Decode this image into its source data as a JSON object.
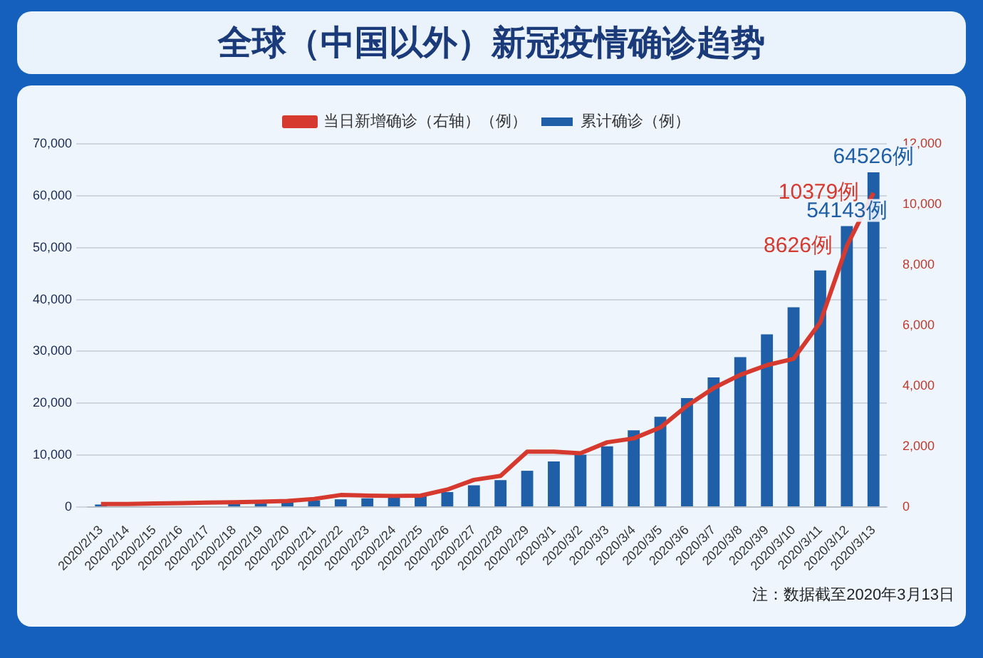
{
  "chart_data": {
    "type": "bar",
    "title": "全球（中国以外）新冠疫情确诊趋势",
    "categories": [
      "2020/2/13",
      "2020/2/14",
      "2020/2/15",
      "2020/2/16",
      "2020/2/17",
      "2020/2/18",
      "2020/2/19",
      "2020/2/20",
      "2020/2/21",
      "2020/2/22",
      "2020/2/23",
      "2020/2/24",
      "2020/2/25",
      "2020/2/26",
      "2020/2/27",
      "2020/2/28",
      "2020/2/29",
      "2020/3/1",
      "2020/3/2",
      "2020/3/3",
      "2020/3/4",
      "2020/3/5",
      "2020/3/6",
      "2020/3/7",
      "2020/3/8",
      "2020/3/9",
      "2020/3/10",
      "2020/3/11",
      "2020/3/12",
      "2020/3/13"
    ],
    "series": [
      {
        "name": "累计确诊（例）",
        "color": "#1f5fa8",
        "values": [
          500,
          null,
          null,
          null,
          null,
          900,
          1000,
          1100,
          1300,
          1500,
          1700,
          2000,
          2400,
          2900,
          4200,
          5200,
          7000,
          8800,
          10100,
          11700,
          14800,
          17400,
          21000,
          25000,
          28900,
          33300,
          38500,
          45600,
          54143,
          64526
        ],
        "value_labels": [
          null,
          null,
          null,
          null,
          null,
          null,
          null,
          null,
          null,
          null,
          null,
          null,
          null,
          null,
          null,
          null,
          null,
          null,
          null,
          null,
          null,
          null,
          null,
          null,
          null,
          null,
          null,
          null,
          "54143例",
          "64526例"
        ]
      },
      {
        "name": "当日新增确诊（右轴）（例）",
        "type": "line",
        "axis": "y2",
        "color": "#d63a2f",
        "values": [
          100,
          100,
          120,
          130,
          150,
          160,
          180,
          200,
          270,
          400,
          380,
          370,
          380,
          580,
          900,
          1030,
          1830,
          1830,
          1780,
          2140,
          2270,
          2630,
          3350,
          3930,
          4370,
          4690,
          4900,
          6100,
          8626,
          10379
        ],
        "value_labels": [
          null,
          null,
          null,
          null,
          null,
          null,
          null,
          null,
          null,
          null,
          null,
          null,
          null,
          null,
          null,
          null,
          null,
          null,
          null,
          null,
          null,
          null,
          null,
          null,
          null,
          null,
          null,
          null,
          "8626例",
          "10379例"
        ]
      }
    ],
    "ylim": [
      0,
      70000
    ],
    "yticks": [
      0,
      {
        "value": 10000,
        "label": "10,000"
      },
      {
        "value": 20000,
        "label": "20,000"
      },
      {
        "value": 30000,
        "label": "30,000"
      },
      {
        "value": 40000,
        "label": "40,000"
      },
      {
        "value": 50000,
        "label": "50,000"
      },
      {
        "value": 60000,
        "label": "60,000"
      },
      {
        "value": 70000,
        "label": "70,000"
      }
    ],
    "y2lim": [
      0,
      12000
    ],
    "y2ticks": [
      0,
      {
        "value": 2000,
        "label": "2,000"
      },
      {
        "value": 4000,
        "label": "4,000"
      },
      {
        "value": 6000,
        "label": "6,000"
      },
      {
        "value": 8000,
        "label": "8,000"
      },
      {
        "value": 10000,
        "label": "10,000"
      },
      {
        "value": 12000,
        "label": "12,000"
      }
    ],
    "grid": "y",
    "legend": "top",
    "marker": "none",
    "annotations": [
      "注：数据截至2020年3月13日"
    ]
  }
}
